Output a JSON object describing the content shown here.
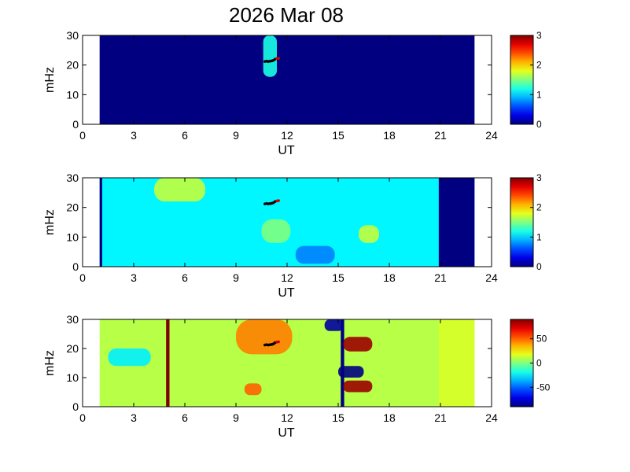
{
  "figure": {
    "title": "2026 Mar 08"
  },
  "chart_data": [
    {
      "type": "heatmap",
      "xlabel": "UT",
      "ylabel": "mHz",
      "xlim": [
        0,
        24
      ],
      "ylim": [
        0,
        30
      ],
      "xticks": [
        "0",
        "3",
        "6",
        "9",
        "12",
        "15",
        "18",
        "21",
        "24"
      ],
      "yticks": [
        "0",
        "10",
        "20",
        "30"
      ],
      "colorbar": {
        "min": 0,
        "max": 3,
        "ticks": [
          "0",
          "1",
          "2",
          "3"
        ],
        "colormap": "jet"
      },
      "data_extent_ut": [
        1.0,
        23.0
      ],
      "background_level": 0.0,
      "features": [
        {
          "kind": "enhancement",
          "ut": [
            10.6,
            11.4
          ],
          "mhz": [
            16,
            30
          ],
          "level": 1.2
        }
      ],
      "markers_ut": [
        10.7,
        10.8,
        10.9,
        11.0,
        11.1,
        11.2,
        11.3,
        11.4,
        11.5
      ],
      "markers_mhz": [
        21.2,
        21.3,
        21.2,
        21.3,
        21.4,
        21.6,
        22.0,
        22.2,
        22.3
      ]
    },
    {
      "type": "heatmap",
      "xlabel": "UT",
      "ylabel": "mHz",
      "xlim": [
        0,
        24
      ],
      "ylim": [
        0,
        30
      ],
      "xticks": [
        "0",
        "3",
        "6",
        "9",
        "12",
        "15",
        "18",
        "21",
        "24"
      ],
      "yticks": [
        "0",
        "10",
        "20",
        "30"
      ],
      "colorbar": {
        "min": 0,
        "max": 3,
        "ticks": [
          "0",
          "1",
          "2",
          "3"
        ],
        "colormap": "jet"
      },
      "data_extent_ut": [
        1.0,
        23.0
      ],
      "background_level": 1.1,
      "features": [
        {
          "kind": "dropout",
          "ut": [
            1.0,
            1.15
          ],
          "mhz": [
            0,
            30
          ],
          "level": 0.0
        },
        {
          "kind": "dropout",
          "ut": [
            20.9,
            23.0
          ],
          "mhz": [
            0,
            30
          ],
          "level": 0.0
        },
        {
          "kind": "enhancement",
          "ut": [
            4.2,
            7.2
          ],
          "mhz": [
            22,
            30
          ],
          "level": 1.7
        },
        {
          "kind": "enhancement",
          "ut": [
            10.5,
            12.2
          ],
          "mhz": [
            8,
            16
          ],
          "level": 1.5
        },
        {
          "kind": "enhancement",
          "ut": [
            16.2,
            17.4
          ],
          "mhz": [
            8,
            14
          ],
          "level": 1.7
        },
        {
          "kind": "depression",
          "ut": [
            12.5,
            14.8
          ],
          "mhz": [
            1,
            7
          ],
          "level": 0.75
        }
      ],
      "markers_ut": [
        10.7,
        10.8,
        10.9,
        11.0,
        11.1,
        11.2,
        11.3,
        11.4,
        11.5
      ],
      "markers_mhz": [
        21.2,
        21.3,
        21.2,
        21.3,
        21.4,
        21.6,
        22.0,
        22.2,
        22.3
      ]
    },
    {
      "type": "heatmap",
      "xlabel": "UT",
      "ylabel": "mHz",
      "xlim": [
        0,
        24
      ],
      "ylim": [
        0,
        30
      ],
      "xticks": [
        "0",
        "3",
        "6",
        "9",
        "12",
        "15",
        "18",
        "21",
        "24"
      ],
      "yticks": [
        "0",
        "10",
        "20",
        "30"
      ],
      "colorbar": {
        "min": -90,
        "max": 90,
        "ticks": [
          "50",
          "0",
          "-50"
        ],
        "tick_values": [
          50,
          0,
          -50
        ],
        "colormap": "jet"
      },
      "data_extent_ut": [
        1.0,
        23.0
      ],
      "background_level": 10,
      "features": [
        {
          "kind": "blank",
          "ut": [
            20.9,
            23.0
          ],
          "mhz": [
            0,
            30
          ],
          "level": 15
        },
        {
          "kind": "line",
          "ut": [
            4.9,
            5.1
          ],
          "mhz": [
            0,
            30
          ],
          "level": 90
        },
        {
          "kind": "line",
          "ut": [
            15.15,
            15.35
          ],
          "mhz": [
            0,
            30
          ],
          "level": -90
        },
        {
          "kind": "positive",
          "ut": [
            9.0,
            12.3
          ],
          "mhz": [
            18,
            30
          ],
          "level": 45
        },
        {
          "kind": "positive",
          "ut": [
            9.5,
            10.5
          ],
          "mhz": [
            4,
            8
          ],
          "level": 50
        },
        {
          "kind": "positive",
          "ut": [
            15.3,
            17.0
          ],
          "mhz": [
            19,
            24
          ],
          "level": 85
        },
        {
          "kind": "negative",
          "ut": [
            15.0,
            16.5
          ],
          "mhz": [
            10,
            14
          ],
          "level": -90
        },
        {
          "kind": "positive",
          "ut": [
            15.3,
            17.0
          ],
          "mhz": [
            5,
            9
          ],
          "level": 85
        },
        {
          "kind": "negative",
          "ut": [
            14.2,
            15.3
          ],
          "mhz": [
            26,
            30
          ],
          "level": -85
        },
        {
          "kind": "negative",
          "ut": [
            1.5,
            4.0
          ],
          "mhz": [
            14,
            20
          ],
          "level": -25
        }
      ],
      "markers_ut": [
        10.7,
        10.8,
        10.9,
        11.0,
        11.1,
        11.2,
        11.3,
        11.4,
        11.5
      ],
      "markers_mhz": [
        21.2,
        21.3,
        21.2,
        21.3,
        21.4,
        21.6,
        22.0,
        22.2,
        22.3
      ]
    }
  ]
}
